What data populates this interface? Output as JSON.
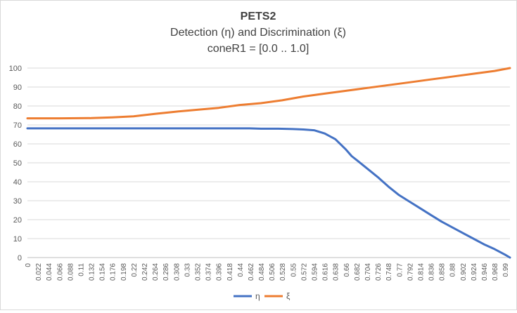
{
  "chart_data": {
    "type": "line",
    "title": "PETS2",
    "subtitle_lines": [
      "Detection (η) and Discrimination (ξ)",
      "coneR1 = [0.0 .. 1.0]"
    ],
    "xlabel": "",
    "ylabel": "",
    "ylim": [
      0,
      100
    ],
    "yticks": [
      0,
      10,
      20,
      30,
      40,
      50,
      60,
      70,
      80,
      90,
      100
    ],
    "x_tick_labels": [
      "0",
      "0.022",
      "0.044",
      "0.066",
      "0.088",
      "0.11",
      "0.132",
      "0.154",
      "0.176",
      "0.198",
      "0.22",
      "0.242",
      "0.264",
      "0.286",
      "0.308",
      "0.33",
      "0.352",
      "0.374",
      "0.396",
      "0.418",
      "0.44",
      "0.462",
      "0.484",
      "0.506",
      "0.528",
      "0.55",
      "0.572",
      "0.594",
      "0.616",
      "0.638",
      "0.66",
      "0.682",
      "0.704",
      "0.726",
      "0.748",
      "0.77",
      "0.792",
      "0.814",
      "0.836",
      "0.858",
      "0.88",
      "0.902",
      "0.924",
      "0.946",
      "0.968",
      "0.99"
    ],
    "x_range": [
      0,
      1.0
    ],
    "grid": true,
    "legend_position": "bottom",
    "series": [
      {
        "name": "η",
        "color": "#4472c4",
        "points": [
          [
            0.0,
            68.2
          ],
          [
            0.1,
            68.2
          ],
          [
            0.2,
            68.2
          ],
          [
            0.3,
            68.2
          ],
          [
            0.4,
            68.2
          ],
          [
            0.46,
            68.2
          ],
          [
            0.484,
            68.0
          ],
          [
            0.52,
            68.0
          ],
          [
            0.55,
            67.8
          ],
          [
            0.572,
            67.6
          ],
          [
            0.594,
            67.2
          ],
          [
            0.616,
            65.5
          ],
          [
            0.638,
            62.5
          ],
          [
            0.66,
            57.0
          ],
          [
            0.672,
            53.5
          ],
          [
            0.682,
            51.5
          ],
          [
            0.704,
            47.0
          ],
          [
            0.726,
            42.5
          ],
          [
            0.748,
            37.5
          ],
          [
            0.77,
            33.0
          ],
          [
            0.792,
            29.5
          ],
          [
            0.814,
            26.0
          ],
          [
            0.836,
            22.5
          ],
          [
            0.858,
            19.0
          ],
          [
            0.88,
            16.0
          ],
          [
            0.902,
            13.0
          ],
          [
            0.924,
            10.0
          ],
          [
            0.946,
            7.0
          ],
          [
            0.968,
            4.5
          ],
          [
            0.99,
            1.5
          ],
          [
            1.0,
            0.0
          ]
        ]
      },
      {
        "name": "ξ",
        "color": "#ed7d31",
        "points": [
          [
            0.0,
            73.5
          ],
          [
            0.066,
            73.5
          ],
          [
            0.132,
            73.6
          ],
          [
            0.176,
            74.0
          ],
          [
            0.22,
            74.5
          ],
          [
            0.264,
            75.8
          ],
          [
            0.308,
            77.0
          ],
          [
            0.352,
            78.0
          ],
          [
            0.396,
            79.0
          ],
          [
            0.44,
            80.5
          ],
          [
            0.484,
            81.5
          ],
          [
            0.528,
            83.0
          ],
          [
            0.572,
            85.0
          ],
          [
            0.616,
            86.5
          ],
          [
            0.66,
            88.0
          ],
          [
            0.704,
            89.5
          ],
          [
            0.748,
            91.0
          ],
          [
            0.792,
            92.5
          ],
          [
            0.836,
            94.0
          ],
          [
            0.88,
            95.5
          ],
          [
            0.924,
            97.0
          ],
          [
            0.968,
            98.5
          ],
          [
            1.0,
            100.0
          ]
        ]
      }
    ]
  }
}
